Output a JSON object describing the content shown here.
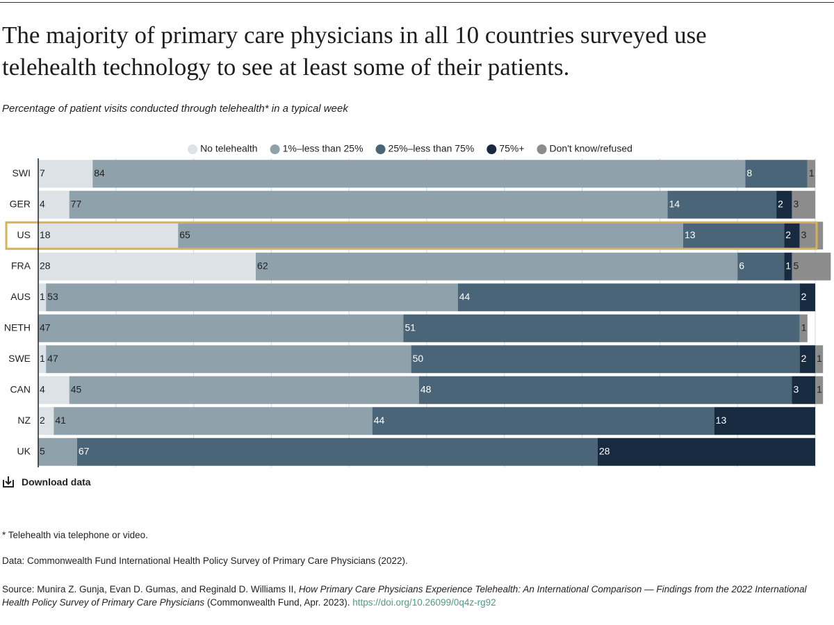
{
  "chart_data": {
    "type": "stacked-bar-horizontal",
    "title": [
      "The majority of primary care physicians in all 10 countries surveyed use",
      "telehealth technology to see at least some of their patients."
    ],
    "subtitle": "Percentage of patient visits conducted through telehealth* in a typical week",
    "categories": [
      "SWI",
      "GER",
      "US",
      "FRA",
      "AUS",
      "NETH",
      "SWE",
      "CAN",
      "NZ",
      "UK"
    ],
    "highlight": "US",
    "series": [
      {
        "name": "No telehealth",
        "color": "#dde2e6",
        "values": [
          7,
          4,
          18,
          28,
          1,
          null,
          1,
          4,
          2,
          null
        ]
      },
      {
        "name": "1%–less than 25%",
        "color": "#8fa1ab",
        "values": [
          84,
          77,
          65,
          62,
          53,
          47,
          47,
          45,
          41,
          5
        ]
      },
      {
        "name": "25%–less than 75%",
        "color": "#4a6577",
        "values": [
          8,
          14,
          13,
          6,
          44,
          51,
          50,
          48,
          44,
          67
        ]
      },
      {
        "name": "75%+",
        "color": "#172a40",
        "values": [
          null,
          2,
          2,
          1,
          2,
          null,
          2,
          3,
          13,
          28
        ]
      },
      {
        "name": "Don't know/refused",
        "color": "#8c8c8c",
        "values": [
          1,
          3,
          3,
          5,
          null,
          1,
          1,
          1,
          null,
          null
        ]
      }
    ],
    "xlim": [
      0,
      100
    ],
    "xticks": [
      0,
      10,
      20,
      30,
      40,
      50,
      60,
      70,
      80,
      90,
      100
    ],
    "grid": true
  },
  "download": "Download data",
  "footnote": "* Telehealth via telephone or video.",
  "data_note": "Data: Commonwealth Fund International Health Policy Survey of Primary Care Physicians (2022).",
  "source": {
    "prefix": "Source: Munira Z. Gunja, Evan D. Gumas, and Reginald D. Williams II, ",
    "title": "How Primary Care Physicians Experience Telehealth: An International Comparison — Findings from the 2022 International Health Policy Survey of Primary Care Physicians",
    "suffix": " (Commonwealth Fund, Apr. 2023). ",
    "link": "https://doi.org/10.26099/0q4z-rg92"
  }
}
